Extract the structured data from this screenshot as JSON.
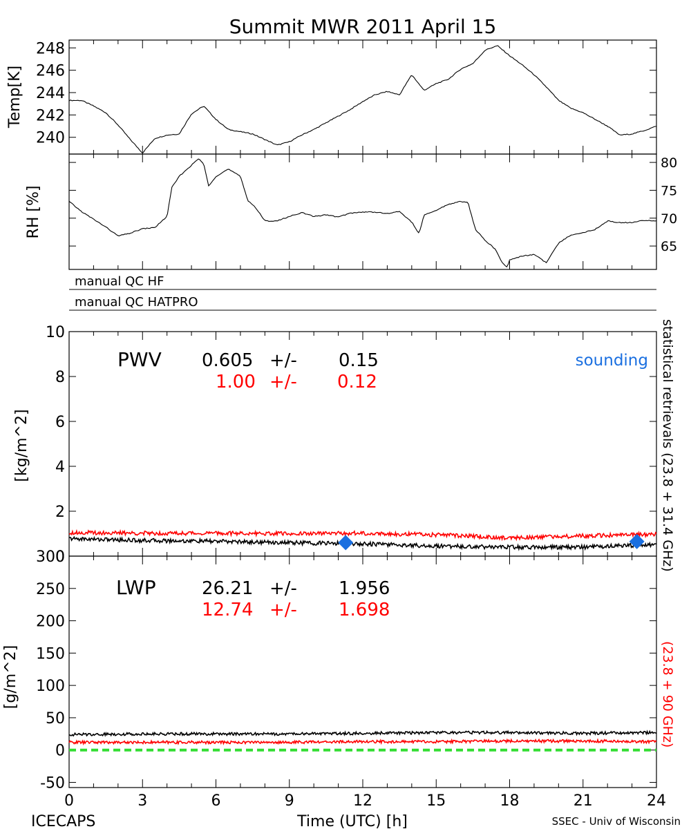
{
  "figure": {
    "title": "Summit MWR 2011 April 15",
    "footer_left": "ICECAPS",
    "footer_right": "SSEC - Univ of Wisconsin",
    "xlabel": "Time (UTC) [h]",
    "right_label_black": "statistical retrievals (23.8 + 31.4 GHz)",
    "right_label_red": "(23.8 + 90 GHz)",
    "qc_labels": [
      "manual QC HF",
      "manual QC HATPRO"
    ],
    "colors": {
      "black": "#000000",
      "red": "#ff0000",
      "blue": "#1a6fe0",
      "green": "#33dd33"
    }
  },
  "chart_data": [
    {
      "type": "line",
      "id": "temp",
      "ylabel": "Temp[K]",
      "xlim": [
        0,
        24
      ],
      "ylim": [
        238.5,
        248.7
      ],
      "yticks": [
        240,
        242,
        244,
        246,
        248
      ],
      "series": [
        {
          "color": "#000000",
          "x": [
            0,
            0.5,
            1,
            1.5,
            2,
            2.5,
            3,
            3.5,
            4,
            4.5,
            5,
            5.5,
            6,
            6.5,
            7,
            7.5,
            8,
            8.5,
            9,
            9.5,
            10,
            10.5,
            11,
            11.5,
            12,
            12.5,
            13,
            13.5,
            14,
            14.5,
            15,
            15.5,
            16,
            16.5,
            17,
            17.5,
            18,
            18.5,
            19,
            19.5,
            20,
            20.5,
            21,
            21.5,
            22,
            22.5,
            23,
            23.5,
            24
          ],
          "values": [
            243.3,
            243.3,
            242.8,
            242.2,
            241.1,
            239.8,
            238.6,
            239.9,
            240.2,
            240.3,
            242.1,
            242.8,
            241.6,
            240.7,
            240.5,
            240.3,
            239.8,
            239.3,
            239.6,
            240.2,
            240.7,
            241.3,
            241.9,
            242.5,
            243.2,
            243.8,
            244.1,
            243.8,
            245.6,
            244.2,
            244.8,
            245.2,
            246.1,
            246.6,
            247.8,
            248.2,
            247.3,
            246.5,
            245.6,
            244.5,
            243.3,
            242.6,
            242.2,
            241.6,
            241,
            240.2,
            240.3,
            240.6,
            241
          ]
        }
      ]
    },
    {
      "type": "line",
      "id": "rh",
      "ylabel": "RH [%]",
      "xlim": [
        0,
        24
      ],
      "ylim": [
        60.8,
        81.5
      ],
      "yticks": [
        65,
        70,
        75,
        80
      ],
      "series": [
        {
          "color": "#000000",
          "x": [
            0,
            0.5,
            1,
            1.5,
            2,
            2.5,
            3,
            3.5,
            4,
            4.2,
            4.5,
            5,
            5.3,
            5.5,
            5.7,
            6,
            6.5,
            7,
            7.3,
            7.6,
            8,
            8.5,
            9,
            9.5,
            10,
            10.5,
            11,
            11.5,
            12,
            12.5,
            13,
            13.5,
            14,
            14.3,
            14.5,
            15,
            15.5,
            16,
            16.3,
            16.6,
            17,
            17.4,
            17.7,
            17.9,
            18,
            18.5,
            19,
            19.5,
            20,
            20.5,
            21,
            21.5,
            22,
            22.5,
            23,
            23.5,
            24
          ],
          "values": [
            73,
            71.2,
            69.8,
            68.4,
            66.8,
            67.3,
            68.1,
            68.3,
            70.3,
            75.5,
            77.5,
            79.5,
            80.7,
            79.7,
            75.8,
            77.5,
            78.8,
            77.5,
            73.2,
            72,
            69.5,
            69.5,
            70.3,
            71,
            70.3,
            70.6,
            70.2,
            70.9,
            71.1,
            71.1,
            70.8,
            71.2,
            69.3,
            67.2,
            70.5,
            71.4,
            72.5,
            73,
            72.8,
            68,
            66,
            64.5,
            62,
            61.2,
            62.5,
            63.2,
            63.5,
            62,
            65.5,
            67,
            67.4,
            68,
            69.5,
            69.2,
            69.2,
            69.6,
            69.5
          ]
        }
      ]
    },
    {
      "type": "line",
      "id": "pwv",
      "ylabel": "[kg/m^2]",
      "xlim": [
        0,
        24
      ],
      "ylim": [
        0,
        10
      ],
      "yticks": [
        0,
        2,
        4,
        6,
        8,
        10
      ],
      "annotation_label": "PWV",
      "stats": [
        {
          "value": "0.605",
          "pm": "+/-",
          "err": "0.15",
          "color": "#000000"
        },
        {
          "value": "1.00",
          "pm": "+/-",
          "err": "0.12",
          "color": "#ff0000"
        }
      ],
      "legend_sounding": "sounding",
      "series": [
        {
          "color": "#ff0000",
          "x": [
            0,
            3,
            6,
            9,
            12,
            15,
            18,
            21,
            24
          ],
          "values": [
            1.05,
            1.02,
            1.02,
            1,
            1.02,
            0.95,
            0.82,
            0.9,
            0.98
          ]
        },
        {
          "color": "#000000",
          "x": [
            0,
            3,
            6,
            9,
            12,
            15,
            18,
            21,
            24
          ],
          "values": [
            0.78,
            0.7,
            0.66,
            0.6,
            0.55,
            0.45,
            0.4,
            0.4,
            0.52
          ]
        },
        {
          "color": "#1a6fe0",
          "marker": "diamond",
          "x": [
            11.3,
            23.2
          ],
          "values": [
            0.6,
            0.65
          ]
        }
      ]
    },
    {
      "type": "line",
      "id": "lwp",
      "ylabel": "[g/m^2]",
      "xlabel": "Time (UTC) [h]",
      "xlim": [
        0,
        24
      ],
      "ylim": [
        -58,
        300
      ],
      "yticks": [
        -50,
        0,
        50,
        100,
        150,
        200,
        250,
        300
      ],
      "xticks": [
        0,
        3,
        6,
        9,
        12,
        15,
        18,
        21,
        24
      ],
      "annotation_label": "LWP",
      "stats": [
        {
          "value": "26.21",
          "pm": "+/-",
          "err": "1.956",
          "color": "#000000"
        },
        {
          "value": "12.74",
          "pm": "+/-",
          "err": "1.698",
          "color": "#ff0000"
        }
      ],
      "series": [
        {
          "color": "#000000",
          "x": [
            0,
            3,
            6,
            9,
            12,
            15,
            18,
            21,
            24
          ],
          "values": [
            24,
            25,
            25,
            25,
            26,
            27,
            27,
            26,
            27
          ]
        },
        {
          "color": "#ff0000",
          "x": [
            0,
            3,
            6,
            9,
            12,
            15,
            18,
            21,
            24
          ],
          "values": [
            12,
            12,
            12,
            12,
            13,
            13,
            14,
            14,
            13
          ]
        },
        {
          "color": "#33dd33",
          "dashed": true,
          "x": [
            0,
            24
          ],
          "values": [
            0,
            0
          ]
        }
      ]
    }
  ]
}
